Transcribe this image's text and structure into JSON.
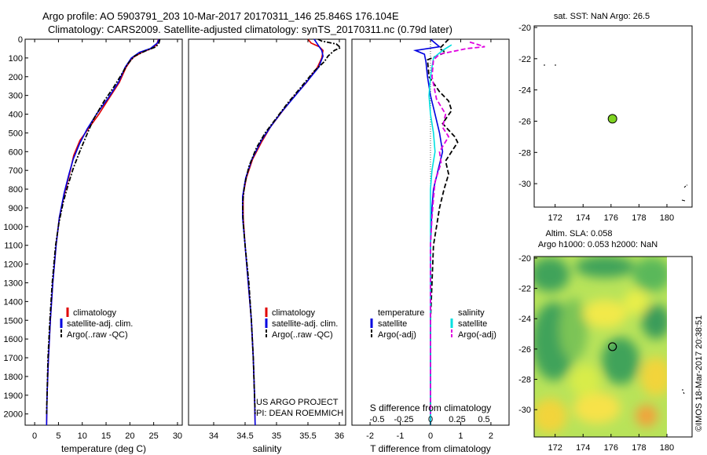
{
  "header": {
    "title_line1": "Argo profile: AO 5903791_203 10-Mar-2017 20170311_146 25.846S 176.104E",
    "title_line2": "Climatology: CARS2009. Satellite-adjusted climatology: synTS_20170311.nc (0.79d later)"
  },
  "colors": {
    "climatology": "#e00000",
    "satellite": "#0000e0",
    "argo": "#000000",
    "salinity_satellite": "#00e0e0",
    "salinity_argo": "#e000e0",
    "dot": "#7ed321"
  },
  "chart_data": [
    {
      "id": "temperature",
      "type": "line",
      "xlabel": "temperature (deg C)",
      "ylabel": "",
      "xlim": [
        -2,
        31
      ],
      "ylim": [
        2060,
        0
      ],
      "xticks": [
        0,
        5,
        10,
        15,
        20,
        25,
        30
      ],
      "yticks": [
        0,
        100,
        200,
        300,
        400,
        500,
        600,
        700,
        800,
        900,
        1000,
        1100,
        1200,
        1300,
        1400,
        1500,
        1600,
        1700,
        1800,
        1900,
        2000
      ],
      "legend": [
        "climatology",
        "satellite-adj. clim.",
        "Argo(..raw -QC)"
      ],
      "series": [
        {
          "name": "climatology",
          "style": "solid",
          "color": "#e00000",
          "points": [
            [
              26,
              0
            ],
            [
              25.6,
              30
            ],
            [
              24.5,
              50
            ],
            [
              22.5,
              70
            ],
            [
              20.5,
              100
            ],
            [
              19.2,
              150
            ],
            [
              17.8,
              230
            ],
            [
              15.5,
              320
            ],
            [
              13.5,
              400
            ],
            [
              11.5,
              470
            ],
            [
              9.5,
              540
            ],
            [
              8.2,
              620
            ],
            [
              7.5,
              700
            ],
            [
              6.3,
              820
            ],
            [
              5.2,
              950
            ],
            [
              4.5,
              1100
            ],
            [
              3.8,
              1300
            ],
            [
              3.3,
              1500
            ],
            [
              2.9,
              1700
            ],
            [
              2.6,
              1900
            ],
            [
              2.5,
              2060
            ]
          ]
        },
        {
          "name": "satellite-adj. clim.",
          "style": "solid",
          "color": "#0000e0",
          "points": [
            [
              26.1,
              0
            ],
            [
              25.8,
              20
            ],
            [
              24.3,
              50
            ],
            [
              22,
              70
            ],
            [
              20.3,
              100
            ],
            [
              19,
              150
            ],
            [
              17.6,
              230
            ],
            [
              15.3,
              320
            ],
            [
              13,
              400
            ],
            [
              11,
              480
            ],
            [
              9.4,
              560
            ],
            [
              8.1,
              640
            ],
            [
              7.2,
              720
            ],
            [
              6.2,
              820
            ],
            [
              5.2,
              950
            ],
            [
              4.5,
              1100
            ],
            [
              3.8,
              1300
            ],
            [
              3.3,
              1500
            ],
            [
              2.9,
              1700
            ],
            [
              2.6,
              1900
            ],
            [
              2.5,
              2060
            ]
          ]
        },
        {
          "name": "Argo(..raw -QC)",
          "style": "dashdot",
          "color": "#000000",
          "points": [
            [
              26.3,
              0
            ],
            [
              26.1,
              20
            ],
            [
              25.5,
              40
            ],
            [
              23.5,
              60
            ],
            [
              21,
              90
            ],
            [
              19.6,
              130
            ],
            [
              18.2,
              190
            ],
            [
              16.5,
              260
            ],
            [
              14.6,
              330
            ],
            [
              12.3,
              430
            ],
            [
              10.6,
              530
            ],
            [
              9.3,
              610
            ],
            [
              8.1,
              690
            ],
            [
              7.1,
              770
            ],
            [
              6,
              870
            ],
            [
              5.1,
              980
            ],
            [
              4.4,
              1100
            ],
            [
              3.7,
              1300
            ],
            [
              3.2,
              1500
            ],
            [
              2.8,
              1700
            ],
            [
              2.6,
              1900
            ],
            [
              2.5,
              2000
            ]
          ]
        }
      ]
    },
    {
      "id": "salinity",
      "type": "line",
      "xlabel": "salinity",
      "ylabel": "",
      "xlim": [
        33.6,
        36.1
      ],
      "ylim": [
        2060,
        0
      ],
      "xticks": [
        34,
        34.5,
        35,
        35.5,
        36
      ],
      "legend": [
        "climatology",
        "satellite-adj. clim.",
        "Argo(..raw -QC)"
      ],
      "series": [
        {
          "name": "climatology",
          "style": "solid",
          "color": "#e00000",
          "points": [
            [
              35.5,
              0
            ],
            [
              35.55,
              20
            ],
            [
              35.68,
              40
            ],
            [
              35.74,
              60
            ],
            [
              35.72,
              100
            ],
            [
              35.65,
              150
            ],
            [
              35.48,
              230
            ],
            [
              35.27,
              310
            ],
            [
              35.08,
              390
            ],
            [
              34.9,
              470
            ],
            [
              34.76,
              550
            ],
            [
              34.62,
              640
            ],
            [
              34.52,
              740
            ],
            [
              34.47,
              830
            ],
            [
              34.47,
              950
            ],
            [
              34.5,
              1100
            ],
            [
              34.55,
              1300
            ],
            [
              34.6,
              1500
            ],
            [
              34.63,
              1700
            ],
            [
              34.65,
              1900
            ],
            [
              34.66,
              2060
            ]
          ]
        },
        {
          "name": "satellite-adj. clim.",
          "style": "solid",
          "color": "#0000e0",
          "points": [
            [
              35.6,
              0
            ],
            [
              35.64,
              20
            ],
            [
              35.68,
              40
            ],
            [
              35.72,
              60
            ],
            [
              35.74,
              90
            ],
            [
              35.67,
              150
            ],
            [
              35.5,
              220
            ],
            [
              35.3,
              300
            ],
            [
              35.1,
              380
            ],
            [
              34.92,
              460
            ],
            [
              34.76,
              540
            ],
            [
              34.61,
              640
            ],
            [
              34.51,
              740
            ],
            [
              34.46,
              840
            ],
            [
              34.46,
              950
            ],
            [
              34.5,
              1100
            ],
            [
              34.55,
              1300
            ],
            [
              34.6,
              1500
            ],
            [
              34.63,
              1700
            ],
            [
              34.65,
              1900
            ],
            [
              34.66,
              2060
            ]
          ]
        },
        {
          "name": "Argo(..raw -QC)",
          "style": "dashdot",
          "color": "#000000",
          "points": [
            [
              35.66,
              0
            ],
            [
              35.72,
              10
            ],
            [
              35.95,
              25
            ],
            [
              36.02,
              45
            ],
            [
              35.92,
              60
            ],
            [
              35.82,
              90
            ],
            [
              35.76,
              120
            ],
            [
              35.6,
              170
            ],
            [
              35.38,
              260
            ],
            [
              35.18,
              340
            ],
            [
              35.0,
              420
            ],
            [
              34.82,
              500
            ],
            [
              34.68,
              580
            ],
            [
              34.56,
              680
            ],
            [
              34.49,
              780
            ],
            [
              34.46,
              880
            ],
            [
              34.47,
              980
            ],
            [
              34.5,
              1100
            ],
            [
              34.56,
              1300
            ],
            [
              34.6,
              1500
            ],
            [
              34.63,
              1700
            ],
            [
              34.65,
              1900
            ],
            [
              34.66,
              2000
            ]
          ]
        }
      ]
    },
    {
      "id": "difference",
      "type": "line",
      "xlabel": "T difference from climatology",
      "xlabel_top": "S difference from climatology",
      "xlim": [
        -2.6,
        2.6
      ],
      "ylim": [
        2060,
        0
      ],
      "xticks": [
        -2,
        -1,
        0,
        1,
        2
      ],
      "xticks_top": [
        -0.5,
        -0.25,
        0,
        0.25,
        0.5
      ],
      "legend_groups": [
        {
          "title": "temperature",
          "items": [
            "satellite",
            "Argo(-adj)"
          ]
        },
        {
          "title": "salinity",
          "items": [
            "satellite",
            "Argo(-adj)"
          ]
        }
      ],
      "series": [
        {
          "name": "temperature satellite",
          "style": "solid",
          "color": "#0000e0",
          "points": [
            [
              0,
              0
            ],
            [
              0.3,
              40
            ],
            [
              -0.5,
              60
            ],
            [
              -0.2,
              80
            ],
            [
              -0.15,
              120
            ],
            [
              -0.1,
              200
            ],
            [
              0,
              300
            ],
            [
              0.15,
              400
            ],
            [
              0.3,
              500
            ],
            [
              0.4,
              600
            ],
            [
              0.25,
              700
            ],
            [
              0.1,
              800
            ],
            [
              0.05,
              900
            ],
            [
              0,
              1100
            ],
            [
              0,
              1500
            ],
            [
              0,
              2060
            ]
          ]
        },
        {
          "name": "temperature Argo(-adj)",
          "style": "dashed",
          "color": "#000000",
          "points": [
            [
              0.6,
              0
            ],
            [
              0.3,
              50
            ],
            [
              0.5,
              70
            ],
            [
              -0.1,
              110
            ],
            [
              -0.05,
              200
            ],
            [
              0.3,
              280
            ],
            [
              0.6,
              330
            ],
            [
              0.7,
              380
            ],
            [
              0.4,
              450
            ],
            [
              0.8,
              520
            ],
            [
              0.9,
              550
            ],
            [
              0.5,
              650
            ],
            [
              0.6,
              720
            ],
            [
              0.45,
              800
            ],
            [
              0.3,
              900
            ],
            [
              0.2,
              1000
            ],
            [
              0.1,
              1100
            ],
            [
              0.05,
              1300
            ],
            [
              0,
              1500
            ],
            [
              0,
              2000
            ]
          ]
        },
        {
          "name": "salinity satellite",
          "style": "solid",
          "color": "#00e0e0",
          "points": [
            [
              0.7,
              30
            ],
            [
              0.4,
              60
            ],
            [
              0.1,
              100
            ],
            [
              0,
              200
            ],
            [
              -0.05,
              300
            ],
            [
              0,
              400
            ],
            [
              0.1,
              500
            ],
            [
              0.15,
              600
            ],
            [
              0.05,
              700
            ],
            [
              0,
              800
            ],
            [
              0,
              1100
            ],
            [
              0,
              1500
            ],
            [
              0,
              2060
            ]
          ]
        },
        {
          "name": "salinity Argo(-adj)",
          "style": "dashed",
          "color": "#e000e0",
          "points": [
            [
              1.3,
              15
            ],
            [
              1.8,
              40
            ],
            [
              1.2,
              50
            ],
            [
              0.3,
              80
            ],
            [
              0.1,
              110
            ],
            [
              0.05,
              200
            ],
            [
              0.2,
              320
            ],
            [
              0.5,
              400
            ],
            [
              0.4,
              470
            ],
            [
              0.6,
              520
            ],
            [
              0.3,
              600
            ],
            [
              0.35,
              660
            ],
            [
              0.15,
              760
            ],
            [
              0.1,
              850
            ],
            [
              0.05,
              950
            ],
            [
              0,
              1100
            ],
            [
              0,
              1500
            ],
            [
              0,
              2000
            ]
          ]
        }
      ]
    },
    {
      "id": "sst_map",
      "type": "scatter",
      "title": "sat. SST: NaN Argo: 26.5",
      "xlim": [
        170.5,
        181.8
      ],
      "ylim": [
        -31.5,
        -19.9
      ],
      "xticks": [
        172,
        174,
        176,
        178,
        180
      ],
      "yticks": [
        -20,
        -22,
        -24,
        -26,
        -28,
        -30
      ],
      "points": [
        [
          176.104,
          -25.846
        ]
      ]
    },
    {
      "id": "sla_map",
      "type": "heatmap",
      "title_line1": "Altim. SLA: 0.058",
      "title_line2": "Argo h1000: 0.053 h2000: NaN",
      "xlim": [
        170.5,
        181.8
      ],
      "ylim": [
        -31.8,
        -19.9
      ],
      "xticks": [
        172,
        174,
        176,
        178,
        180
      ],
      "yticks": [
        -20,
        -22,
        -24,
        -26,
        -28,
        -30
      ],
      "points": [
        [
          176.104,
          -25.846
        ]
      ]
    }
  ],
  "texts": {
    "project_line1": "US ARGO PROJECT",
    "project_line2": "PI: DEAN ROEMMICH",
    "watermark": "©IMOS 18-Mar-2017 20:38:51"
  }
}
